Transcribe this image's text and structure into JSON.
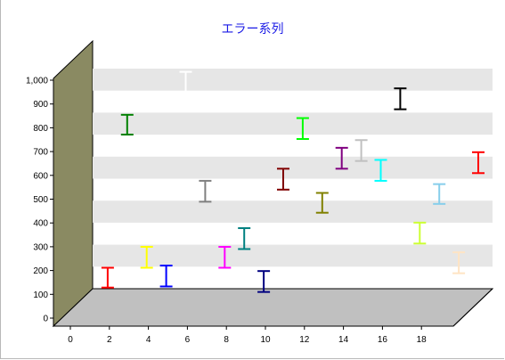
{
  "chart_data": {
    "type": "errorbar",
    "title": "エラー系列",
    "xlabel": "",
    "ylabel": "",
    "xlim": [
      -0.5,
      20
    ],
    "ylim": [
      0,
      1000
    ],
    "x_ticks": [
      "0",
      "2",
      "4",
      "6",
      "8",
      "10",
      "12",
      "14",
      "16",
      "18"
    ],
    "y_ticks": [
      "0",
      "100",
      "200",
      "300",
      "400",
      "500",
      "600",
      "700",
      "800",
      "900",
      "1,000"
    ],
    "grid": true,
    "points": [
      {
        "x": 1,
        "low": 70,
        "high": 160,
        "color": "#ff0000"
      },
      {
        "x": 2,
        "low": 765,
        "high": 855,
        "color": "#008000"
      },
      {
        "x": 3,
        "low": 160,
        "high": 255,
        "color": "#ffff00"
      },
      {
        "x": 4,
        "low": 75,
        "high": 170,
        "color": "#0000ff"
      },
      {
        "x": 5,
        "low": 955,
        "high": 1050,
        "color": "#ffffff"
      },
      {
        "x": 6,
        "low": 460,
        "high": 555,
        "color": "#808080"
      },
      {
        "x": 7,
        "low": 160,
        "high": 255,
        "color": "#ff00ff"
      },
      {
        "x": 8,
        "low": 245,
        "high": 340,
        "color": "#008080"
      },
      {
        "x": 9,
        "low": 50,
        "high": 145,
        "color": "#000080"
      },
      {
        "x": 10,
        "low": 515,
        "high": 610,
        "color": "#800000"
      },
      {
        "x": 11,
        "low": 745,
        "high": 840,
        "color": "#00ff00"
      },
      {
        "x": 12,
        "low": 410,
        "high": 500,
        "color": "#808000"
      },
      {
        "x": 13,
        "low": 610,
        "high": 705,
        "color": "#800080"
      },
      {
        "x": 14,
        "low": 645,
        "high": 740,
        "color": "#c0c0c0"
      },
      {
        "x": 15,
        "low": 555,
        "high": 650,
        "color": "#00ffff"
      },
      {
        "x": 16,
        "low": 880,
        "high": 975,
        "color": "#000000"
      },
      {
        "x": 17,
        "low": 270,
        "high": 365,
        "color": "#ccff33"
      },
      {
        "x": 18,
        "low": 450,
        "high": 540,
        "color": "#87ceeb"
      },
      {
        "x": 19,
        "low": 135,
        "high": 230,
        "color": "#ffe4c4"
      },
      {
        "x": 20,
        "low": 590,
        "high": 685,
        "color": "#ff0000"
      }
    ]
  },
  "colors": {
    "title": "#1a1ae6",
    "wall_left": "#8a8a62",
    "floor": "#c0c0c0",
    "band": "#e6e6e6",
    "frame_line": "#000000"
  }
}
